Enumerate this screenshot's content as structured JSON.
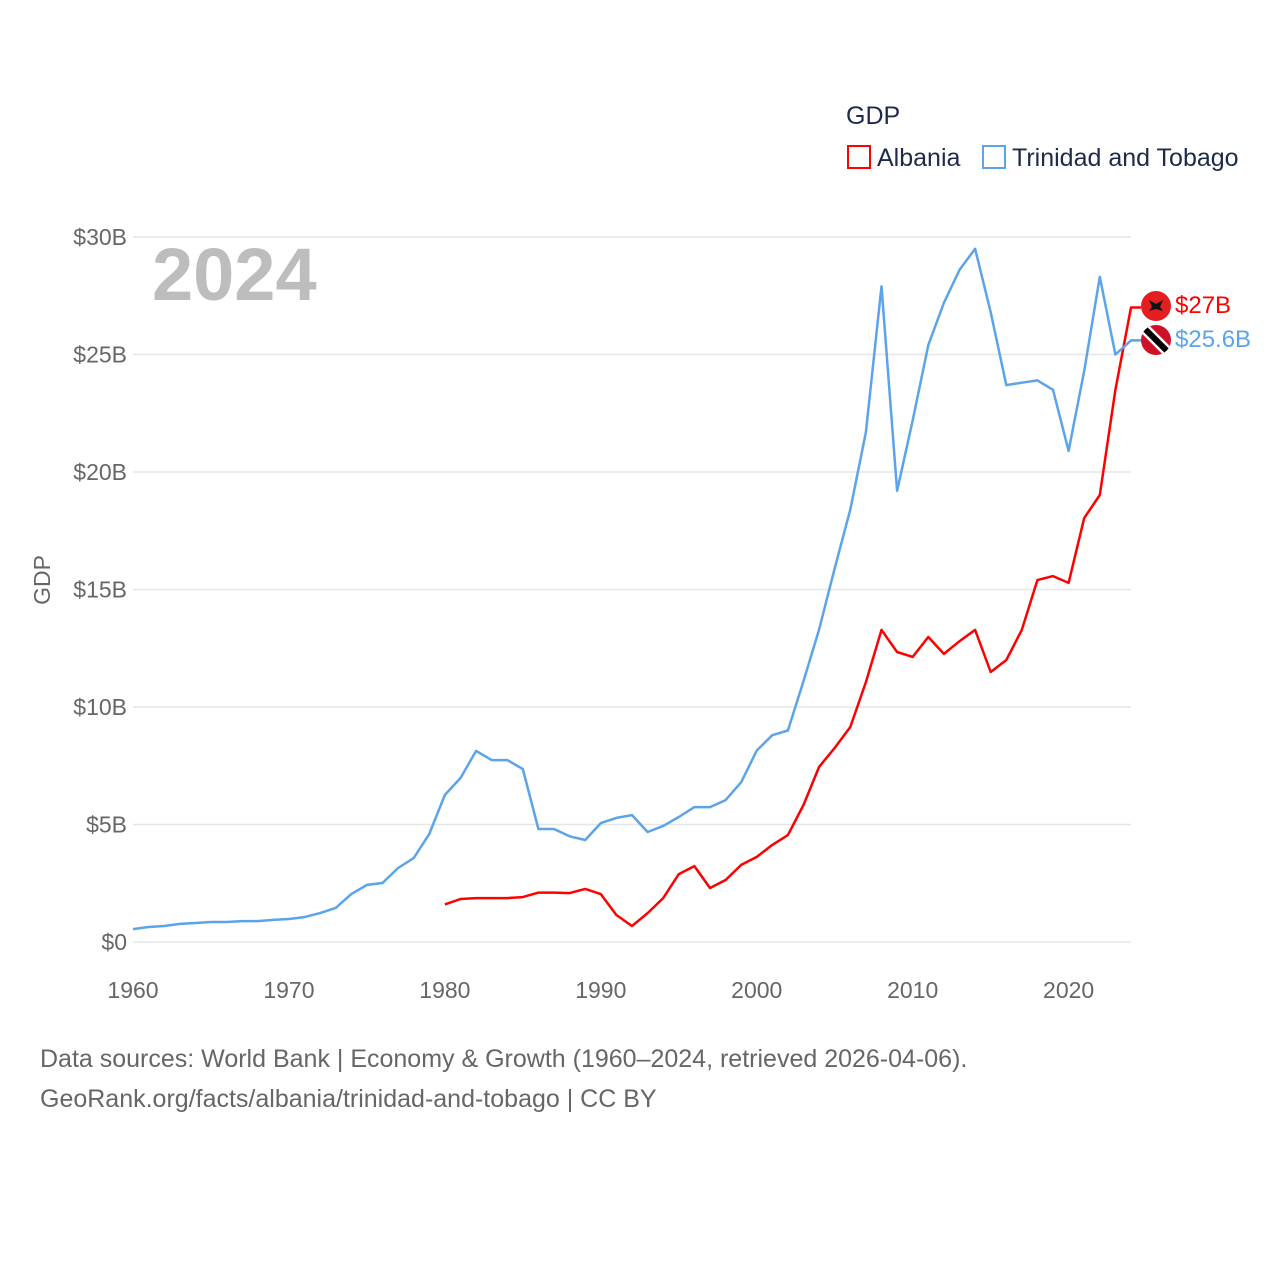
{
  "chart_data": {
    "type": "line",
    "title": "GDP",
    "ylabel": "GDP",
    "xlabel": "",
    "year_label": "2024",
    "xlim": [
      1960,
      2024
    ],
    "ylim": [
      0,
      30
    ],
    "x_ticks": [
      1960,
      1970,
      1980,
      1990,
      2000,
      2010,
      2020
    ],
    "y_ticks": [
      0,
      5,
      10,
      15,
      20,
      25,
      30
    ],
    "y_tick_labels": [
      "$0",
      "$5B",
      "$10B",
      "$15B",
      "$20B",
      "$25B",
      "$30B"
    ],
    "grid": true,
    "legend_position": "top-right",
    "series": [
      {
        "name": "Albania",
        "color": "#ff0000",
        "end_label": "$27B",
        "flag_icon": "albania-flag-icon",
        "start_year": 1980,
        "values": [
          1.6,
          1.83,
          1.87,
          1.87,
          1.87,
          1.91,
          2.1,
          2.1,
          2.08,
          2.26,
          2.04,
          1.15,
          0.68,
          1.23,
          1.87,
          2.89,
          3.23,
          2.3,
          2.64,
          3.28,
          3.62,
          4.13,
          4.55,
          5.83,
          7.45,
          8.26,
          9.15,
          11.06,
          13.28,
          12.34,
          12.13,
          12.98,
          12.26,
          12.8,
          13.28,
          11.49,
          12.0,
          13.28,
          15.4,
          15.57,
          15.28,
          18.04,
          19.02,
          23.5,
          27.0
        ]
      },
      {
        "name": "Trinidad and Tobago",
        "color": "#5ba4e9",
        "end_label": "$25.6B",
        "flag_icon": "trinidad-and-tobago-flag-icon",
        "start_year": 1960,
        "values": [
          0.55,
          0.64,
          0.68,
          0.77,
          0.81,
          0.85,
          0.85,
          0.89,
          0.89,
          0.94,
          0.98,
          1.06,
          1.23,
          1.45,
          2.04,
          2.43,
          2.51,
          3.15,
          3.57,
          4.6,
          6.26,
          6.98,
          8.13,
          7.74,
          7.74,
          7.36,
          4.81,
          4.81,
          4.5,
          4.34,
          5.06,
          5.28,
          5.4,
          4.68,
          4.94,
          5.32,
          5.74,
          5.74,
          6.04,
          6.8,
          8.15,
          8.8,
          9.0,
          11.1,
          13.3,
          15.9,
          18.4,
          21.7,
          27.9,
          19.2,
          22.2,
          25.4,
          27.2,
          28.6,
          29.5,
          26.8,
          23.7,
          23.8,
          23.9,
          23.5,
          20.9,
          24.3,
          28.3,
          25.0,
          25.6
        ]
      }
    ]
  },
  "footer": {
    "line1": "Data sources: World Bank | Economy & Growth (1960–2024, retrieved 2026-04-06).",
    "line2": "GeoRank.org/facts/albania/trinidad-and-tobago | CC BY"
  }
}
